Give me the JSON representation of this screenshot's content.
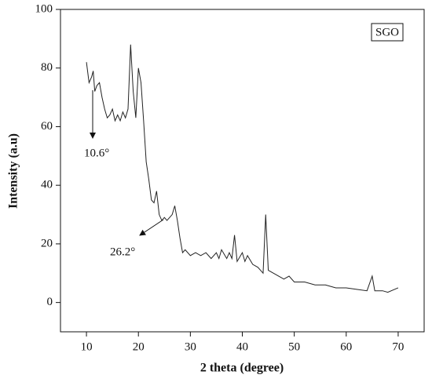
{
  "chart_data": {
    "type": "line",
    "xlabel": "2 theta (degree)",
    "ylabel": "Intensity (a.u)",
    "legend": "SGO",
    "annotations": [
      "10.6°",
      "26.2°"
    ],
    "color": "#222222",
    "xlim": [
      5,
      75
    ],
    "ylim": [
      -10,
      100
    ],
    "xticks": [
      10,
      20,
      30,
      40,
      50,
      60,
      70
    ],
    "yticks": [
      0,
      20,
      40,
      60,
      80,
      100
    ],
    "x": [
      10,
      10.5,
      11,
      11.3,
      11.6,
      12,
      12.5,
      13,
      13.5,
      14,
      14.5,
      15,
      15.5,
      16,
      16.5,
      17,
      17.5,
      18,
      18.5,
      19,
      19.5,
      20,
      20.5,
      21,
      21.5,
      22,
      22.5,
      23,
      23.5,
      24,
      24.5,
      25,
      25.5,
      26,
      26.5,
      27,
      27.5,
      28,
      28.5,
      29,
      30,
      31,
      32,
      33,
      34,
      35,
      35.5,
      36,
      37,
      37.5,
      38,
      38.5,
      39,
      40,
      40.5,
      41,
      42,
      43,
      44,
      44.5,
      45,
      46,
      47,
      48,
      49,
      50,
      52,
      54,
      56,
      58,
      60,
      62,
      64,
      65,
      65.5,
      67,
      68,
      70
    ],
    "values": [
      82,
      75,
      77,
      79,
      72,
      74,
      75,
      70,
      66,
      63,
      64,
      66,
      62,
      64,
      62,
      65,
      63,
      66,
      88,
      72,
      63,
      80,
      75,
      62,
      48,
      42,
      35,
      34,
      38,
      30,
      28,
      29,
      28,
      29,
      30,
      33,
      28,
      22,
      17,
      18,
      16,
      17,
      16,
      17,
      15,
      17,
      15,
      18,
      15,
      17,
      15,
      23,
      14,
      17,
      14,
      16,
      13,
      12,
      10,
      30,
      11,
      10,
      9,
      8,
      9,
      7,
      7,
      6,
      6,
      5,
      5,
      4.5,
      4,
      9,
      4,
      4,
      3.5,
      5
    ]
  }
}
